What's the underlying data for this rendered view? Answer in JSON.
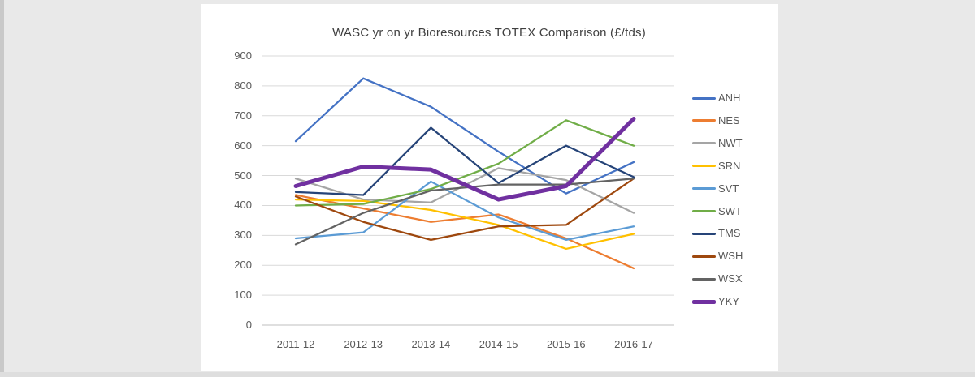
{
  "page": {
    "background_color": "#e9e9e9",
    "card_color": "#ffffff"
  },
  "chart_data": {
    "type": "line",
    "title": "WASC yr on yr Bioresources TOTEX Comparison (£/tds)",
    "xlabel": "",
    "ylabel": "",
    "ylim": [
      0,
      900
    ],
    "yticks": [
      900,
      800,
      700,
      600,
      500,
      400,
      300,
      200,
      100,
      0
    ],
    "grid": "horizontal",
    "gridline_color": "#d9d9d9",
    "axis_line_color": "#bfbfbf",
    "legend_position": "right",
    "categories": [
      "2011-12",
      "2012-13",
      "2013-14",
      "2014-15",
      "2015-16",
      "2016-17"
    ],
    "series": [
      {
        "name": "ANH",
        "color": "#4472C4",
        "line_width": 2.25,
        "values": [
          615,
          825,
          730,
          580,
          440,
          545
        ]
      },
      {
        "name": "NES",
        "color": "#ED7D31",
        "line_width": 2.25,
        "values": [
          435,
          390,
          345,
          370,
          290,
          190
        ]
      },
      {
        "name": "NWT",
        "color": "#A5A5A5",
        "line_width": 2.25,
        "values": [
          490,
          420,
          410,
          525,
          485,
          375
        ]
      },
      {
        "name": "SRN",
        "color": "#FFC000",
        "line_width": 2.25,
        "values": [
          420,
          415,
          385,
          335,
          255,
          305
        ]
      },
      {
        "name": "SVT",
        "color": "#5B9BD5",
        "line_width": 2.25,
        "values": [
          290,
          310,
          480,
          360,
          285,
          330
        ]
      },
      {
        "name": "SWT",
        "color": "#70AD47",
        "line_width": 2.25,
        "values": [
          400,
          405,
          455,
          540,
          685,
          600
        ]
      },
      {
        "name": "TMS",
        "color": "#264478",
        "line_width": 2.25,
        "values": [
          445,
          435,
          660,
          475,
          600,
          495
        ]
      },
      {
        "name": "WSH",
        "color": "#9E480E",
        "line_width": 2.25,
        "values": [
          430,
          345,
          285,
          330,
          335,
          490
        ]
      },
      {
        "name": "WSX",
        "color": "#636363",
        "line_width": 2.25,
        "values": [
          270,
          375,
          450,
          470,
          470,
          490
        ]
      },
      {
        "name": "YKY",
        "color": "#7030A0",
        "line_width": 5,
        "values": [
          465,
          530,
          520,
          420,
          465,
          690
        ]
      }
    ]
  }
}
